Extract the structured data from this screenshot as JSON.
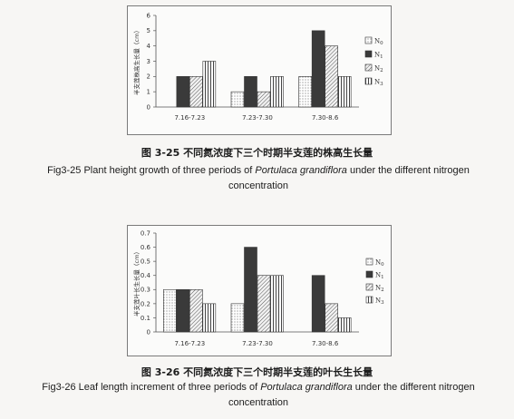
{
  "figures": [
    {
      "caption_cn": "图 3-25 不同氮浓度下三个时期半支莲的株高生长量",
      "caption_en_pre": "Fig3-25 Plant height growth of three periods of ",
      "caption_en_species": "Portulaca grandiflora",
      "caption_en_post": " under the different nitrogen concentration"
    },
    {
      "caption_cn": "图 3-26 不同氮浓度下三个时期半支莲的叶长生长量",
      "caption_en_pre": "Fig3-26 Leaf length increment of three periods of ",
      "caption_en_species": "Portulaca grandiflora",
      "caption_en_post": " under the different nitrogen concentration"
    }
  ],
  "chart_data": [
    {
      "type": "bar",
      "ylabel": "半支莲株高生长量（cm）",
      "ylim": [
        0,
        6
      ],
      "yticks": [
        "0",
        "1",
        "2",
        "3",
        "4",
        "5",
        "6"
      ],
      "categories": [
        "7.16-7.23",
        "7.23-7.30",
        "7.30-8.6"
      ],
      "series": [
        {
          "name": "N0",
          "pattern": "dots",
          "values": [
            0,
            1,
            2
          ]
        },
        {
          "name": "N1",
          "pattern": "solid",
          "values": [
            2,
            2,
            5
          ]
        },
        {
          "name": "N2",
          "pattern": "diag",
          "values": [
            2,
            1,
            4
          ]
        },
        {
          "name": "N3",
          "pattern": "vert",
          "values": [
            3,
            2,
            2
          ]
        }
      ],
      "legend": "right",
      "grid": false
    },
    {
      "type": "bar",
      "ylabel": "半支莲叶长生长量（cm）",
      "ylim": [
        0,
        0.7
      ],
      "yticks": [
        "0",
        "0.1",
        "0.2",
        "0.3",
        "0.4",
        "0.5",
        "0.6",
        "0.7"
      ],
      "categories": [
        "7.16-7.23",
        "7.23-7.30",
        "7.30-8.6"
      ],
      "series": [
        {
          "name": "N0",
          "pattern": "dots",
          "values": [
            0.3,
            0.2,
            0
          ]
        },
        {
          "name": "N1",
          "pattern": "solid",
          "values": [
            0.3,
            0.6,
            0.4
          ]
        },
        {
          "name": "N2",
          "pattern": "diag",
          "values": [
            0.3,
            0.4,
            0.2
          ]
        },
        {
          "name": "N3",
          "pattern": "vert",
          "values": [
            0.2,
            0.4,
            0.1
          ]
        }
      ],
      "legend": "right",
      "grid": false
    }
  ]
}
